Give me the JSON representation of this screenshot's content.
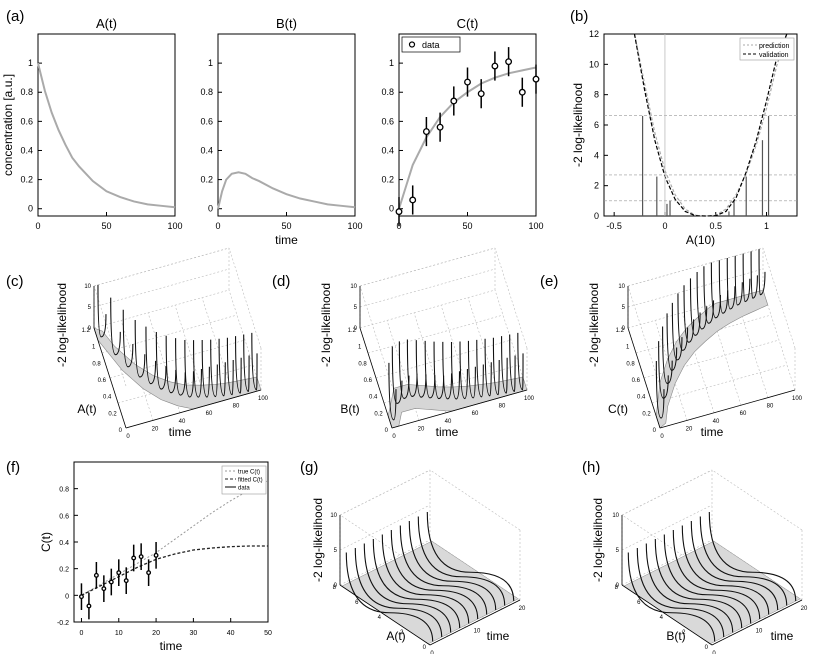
{
  "panel_labels": {
    "a": "(a)",
    "b": "(b)",
    "c": "(c)",
    "d": "(d)",
    "e": "(e)",
    "f": "(f)",
    "g": "(g)",
    "h": "(h)"
  },
  "chart_data": [
    {
      "id": "a1",
      "type": "line",
      "title": "A(t)",
      "xlabel": "",
      "ylabel": "concentration  [a.u.]",
      "xlim": [
        0,
        100
      ],
      "ylim": [
        -0.05,
        1.2
      ],
      "xticks": [
        0,
        50,
        100
      ],
      "yticks": [
        0,
        0.2,
        0.4,
        0.6,
        0.8,
        1
      ],
      "series": [
        {
          "name": "A(t)",
          "x": [
            0,
            5,
            10,
            15,
            20,
            25,
            30,
            40,
            50,
            60,
            70,
            80,
            90,
            100
          ],
          "y": [
            1.0,
            0.81,
            0.66,
            0.54,
            0.44,
            0.35,
            0.29,
            0.19,
            0.12,
            0.08,
            0.05,
            0.03,
            0.02,
            0.01
          ]
        }
      ]
    },
    {
      "id": "a2",
      "type": "line",
      "title": "B(t)",
      "xlabel": "time",
      "ylabel": "",
      "xlim": [
        0,
        100
      ],
      "ylim": [
        -0.05,
        1.2
      ],
      "xticks": [
        0,
        50,
        100
      ],
      "yticks": [
        0,
        0.2,
        0.4,
        0.6,
        0.8,
        1
      ],
      "series": [
        {
          "name": "B(t)",
          "x": [
            0,
            3,
            6,
            10,
            15,
            20,
            25,
            30,
            40,
            50,
            60,
            70,
            80,
            90,
            100
          ],
          "y": [
            0,
            0.12,
            0.2,
            0.24,
            0.25,
            0.24,
            0.21,
            0.19,
            0.14,
            0.1,
            0.07,
            0.05,
            0.03,
            0.02,
            0.01
          ]
        }
      ]
    },
    {
      "id": "a3",
      "type": "line",
      "title": "C(t)",
      "xlabel": "",
      "ylabel": "",
      "xlim": [
        0,
        100
      ],
      "ylim": [
        -0.05,
        1.2
      ],
      "xticks": [
        0,
        50,
        100
      ],
      "yticks": [
        0,
        0.2,
        0.4,
        0.6,
        0.8,
        1
      ],
      "legend": [
        "data"
      ],
      "series": [
        {
          "name": "C(t)",
          "x": [
            0,
            5,
            10,
            20,
            30,
            40,
            50,
            60,
            70,
            80,
            90,
            100
          ],
          "y": [
            0,
            0.15,
            0.3,
            0.49,
            0.63,
            0.73,
            0.8,
            0.86,
            0.9,
            0.93,
            0.95,
            0.97
          ]
        },
        {
          "name": "data",
          "x": [
            0,
            10,
            20,
            30,
            40,
            50,
            60,
            70,
            80,
            90,
            100
          ],
          "y": [
            -0.02,
            0.06,
            0.53,
            0.56,
            0.74,
            0.87,
            0.79,
            0.98,
            1.01,
            0.8,
            0.89
          ],
          "err": [
            0.1,
            0.1,
            0.1,
            0.1,
            0.1,
            0.1,
            0.1,
            0.1,
            0.1,
            0.1,
            0.1
          ]
        }
      ]
    },
    {
      "id": "b",
      "type": "line",
      "title": "",
      "xlabel": "A(10)",
      "ylabel": "-2 log-likelihood",
      "xlim": [
        -0.6,
        1.3
      ],
      "ylim": [
        0,
        12
      ],
      "xticks": [
        -0.5,
        0,
        0.5,
        1
      ],
      "yticks": [
        0,
        2,
        4,
        6,
        8,
        10,
        12
      ],
      "legend": [
        "prediction",
        "validation"
      ],
      "thresholds": [
        1,
        2.71,
        6.63
      ],
      "series": [
        {
          "name": "prediction",
          "x": [
            -0.3,
            -0.2,
            -0.1,
            0,
            0.1,
            0.2,
            0.3,
            0.4,
            0.5,
            0.6,
            0.7,
            0.8,
            0.9,
            1.0,
            1.1,
            1.2
          ],
          "y": [
            12,
            8.7,
            5.5,
            3.0,
            1.4,
            0.45,
            0.05,
            0,
            0.05,
            0.45,
            1.4,
            2.8,
            4.7,
            7.1,
            9.9,
            12
          ]
        },
        {
          "name": "validation",
          "x": [
            -0.3,
            -0.2,
            -0.1,
            0,
            0.1,
            0.2,
            0.3,
            0.4,
            0.5,
            0.6,
            0.7,
            0.8,
            0.9,
            1.0,
            1.1,
            1.2
          ],
          "y": [
            12,
            8.3,
            5.0,
            2.6,
            1.1,
            0.3,
            0.02,
            0,
            0.02,
            0.3,
            1.2,
            2.9,
            5.0,
            7.6,
            10.4,
            12
          ]
        }
      ]
    },
    {
      "id": "c",
      "type": "surface",
      "title": "",
      "xlabel": "time",
      "ylabel": "A(t)",
      "zlabel": "-2 log-likelihood",
      "xticks": [
        "0",
        "20",
        "40",
        "60",
        "80",
        "100"
      ],
      "yticks": [
        "0",
        "0.2",
        "0.4",
        "0.6",
        "0.8",
        "1",
        "1.2"
      ],
      "zticks": [
        "0",
        "5",
        "10"
      ],
      "curve": [
        1.0,
        0.66,
        0.44,
        0.29,
        0.19,
        0.12,
        0.08,
        0.05,
        0.03,
        0.02,
        0.01
      ]
    },
    {
      "id": "d",
      "type": "surface",
      "title": "",
      "xlabel": "time",
      "ylabel": "B(t)",
      "zlabel": "-2 log-likelihood",
      "xticks": [
        "0",
        "20",
        "40",
        "60",
        "80",
        "100"
      ],
      "yticks": [
        "0",
        "0.2",
        "0.4",
        "0.6",
        "0.8",
        "1",
        "1.2"
      ],
      "zticks": [
        "0",
        "5",
        "10"
      ],
      "curve": [
        0,
        0.24,
        0.24,
        0.19,
        0.14,
        0.1,
        0.07,
        0.05,
        0.03,
        0.02,
        0.01
      ]
    },
    {
      "id": "e",
      "type": "surface",
      "title": "",
      "xlabel": "time",
      "ylabel": "C(t)",
      "zlabel": "-2 log-likelihood",
      "xticks": [
        "0",
        "20",
        "40",
        "60",
        "80",
        "100"
      ],
      "yticks": [
        "0",
        "0.2",
        "0.4",
        "0.6",
        "0.8",
        "1",
        "1.2"
      ],
      "zticks": [
        "0",
        "5",
        "10"
      ],
      "curve": [
        0,
        0.3,
        0.49,
        0.63,
        0.73,
        0.8,
        0.86,
        0.9,
        0.93,
        0.95,
        0.97
      ]
    },
    {
      "id": "f",
      "type": "line",
      "title": "",
      "xlabel": "time",
      "ylabel": "C(t)",
      "xlim": [
        -2,
        50
      ],
      "ylim": [
        -0.2,
        1.0
      ],
      "xticks": [
        0,
        10,
        20,
        30,
        40,
        50
      ],
      "yticks": [
        -0.2,
        0,
        0.2,
        0.4,
        0.6,
        0.8
      ],
      "legend": [
        "true C(t)",
        "fitted C(t)",
        "data"
      ],
      "series": [
        {
          "name": "true C(t)",
          "x": [
            0,
            5,
            10,
            15,
            20,
            25,
            30,
            35,
            40,
            45,
            50
          ],
          "y": [
            0,
            0.08,
            0.16,
            0.24,
            0.32,
            0.42,
            0.52,
            0.62,
            0.71,
            0.79,
            0.86
          ]
        },
        {
          "name": "fitted C(t)",
          "x": [
            0,
            5,
            10,
            15,
            20,
            25,
            30,
            35,
            40,
            45,
            50
          ],
          "y": [
            0,
            0.07,
            0.14,
            0.21,
            0.27,
            0.31,
            0.34,
            0.355,
            0.365,
            0.37,
            0.37
          ]
        },
        {
          "name": "data",
          "x": [
            0,
            2,
            4,
            6,
            8,
            10,
            12,
            14,
            16,
            18,
            20
          ],
          "y": [
            -0.01,
            -0.08,
            0.15,
            0.05,
            0.1,
            0.17,
            0.11,
            0.28,
            0.29,
            0.17,
            0.3
          ],
          "err": [
            0.1,
            0.1,
            0.1,
            0.1,
            0.1,
            0.1,
            0.1,
            0.1,
            0.1,
            0.1,
            0.1
          ]
        }
      ]
    },
    {
      "id": "g",
      "type": "surface",
      "title": "",
      "xlabel": "time",
      "ylabel": "A(t)",
      "zlabel": "-2 log-likelihood",
      "xticks": [
        "0",
        "10",
        "20"
      ],
      "yticks": [
        "0",
        "2",
        "4",
        "6",
        "8"
      ],
      "zticks": [
        "0",
        "5",
        "10"
      ]
    },
    {
      "id": "h",
      "type": "surface",
      "title": "",
      "xlabel": "time",
      "ylabel": "B(t)",
      "zlabel": "-2 log-likelihood",
      "xticks": [
        "0",
        "10",
        "20"
      ],
      "yticks": [
        "0",
        "2",
        "4",
        "6",
        "8"
      ],
      "zticks": [
        "0",
        "5",
        "10"
      ]
    }
  ]
}
